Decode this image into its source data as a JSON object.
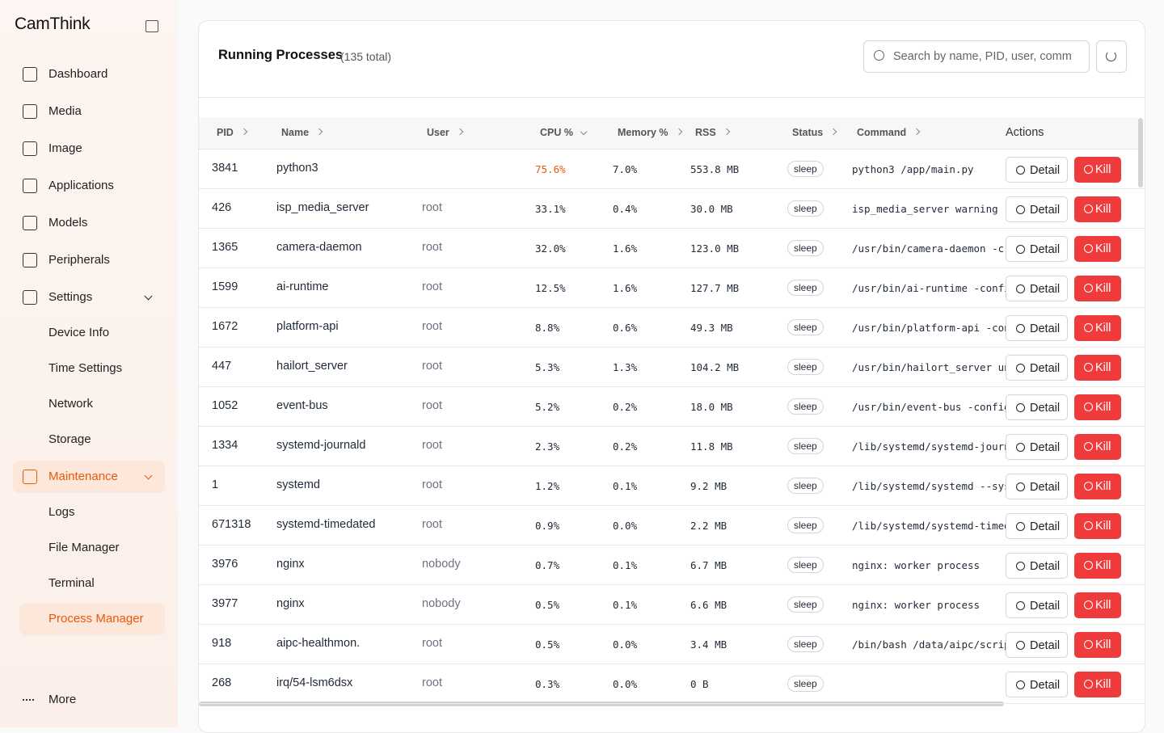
{
  "sidebar": {
    "logo": "CamThink",
    "nav": [
      "Dashboard",
      "Media",
      "Image",
      "Applications",
      "Models",
      "Peripherals"
    ],
    "settings": {
      "label": "Settings",
      "children": [
        "Device Info",
        "Time Settings",
        "Network",
        "Storage"
      ]
    },
    "maintenance": {
      "label": "Maintenance",
      "children": [
        "Logs",
        "File Manager",
        "Terminal",
        "Process Manager"
      ]
    },
    "more": "More"
  },
  "panel": {
    "title": "Running Processes",
    "count": "(135 total)",
    "search_placeholder": "Search by name, PID, user, comm",
    "columns": [
      "PID",
      "Name",
      "User",
      "CPU %",
      "Memory %",
      "RSS",
      "Status",
      "Command",
      "Actions"
    ],
    "actions": {
      "detail": "Detail",
      "kill": "Kill"
    },
    "rows": [
      [
        "3841",
        "python3",
        null,
        "75.6%",
        "7.0%",
        "553.8 MB",
        "sleep",
        "python3 /app/main.py"
      ],
      [
        "426",
        "isp_media_server",
        "root",
        "33.1%",
        "0.4%",
        "30.0 MB",
        "sleep",
        "isp_media_server warning"
      ],
      [
        "1365",
        "camera-daemon",
        "root",
        "32.0%",
        "1.6%",
        "123.0 MB",
        "sleep",
        "/usr/bin/camera-daemon -c"
      ],
      [
        "1599",
        "ai-runtime",
        "root",
        "12.5%",
        "1.6%",
        "127.7 MB",
        "sleep",
        "/usr/bin/ai-runtime -confi"
      ],
      [
        "1672",
        "platform-api",
        "root",
        "8.8%",
        "0.6%",
        "49.3 MB",
        "sleep",
        "/usr/bin/platform-api -con"
      ],
      [
        "447",
        "hailort_server",
        "root",
        "5.3%",
        "1.3%",
        "104.2 MB",
        "sleep",
        "/usr/bin/hailort_server un"
      ],
      [
        "1052",
        "event-bus",
        "root",
        "5.2%",
        "0.2%",
        "18.0 MB",
        "sleep",
        "/usr/bin/event-bus -config"
      ],
      [
        "1334",
        "systemd-journald",
        "root",
        "2.3%",
        "0.2%",
        "11.8 MB",
        "sleep",
        "/lib/systemd/systemd-journ"
      ],
      [
        "1",
        "systemd",
        "root",
        "1.2%",
        "0.1%",
        "9.2 MB",
        "sleep",
        "/lib/systemd/systemd --sys"
      ],
      [
        "671318",
        "systemd-timedated",
        "root",
        "0.9%",
        "0.0%",
        "2.2 MB",
        "sleep",
        "/lib/systemd/systemd-timed"
      ],
      [
        "3976",
        "nginx",
        "nobody",
        "0.7%",
        "0.1%",
        "6.7 MB",
        "sleep",
        "nginx: worker process"
      ],
      [
        "3977",
        "nginx",
        "nobody",
        "0.5%",
        "0.1%",
        "6.6 MB",
        "sleep",
        "nginx: worker process"
      ],
      [
        "918",
        "aipc-healthmon.",
        "root",
        "0.5%",
        "0.0%",
        "3.4 MB",
        "sleep",
        "/bin/bash /data/aipc/scrip"
      ],
      [
        "268",
        "irq/54-lsm6dsx",
        "root",
        "0.3%",
        "0.0%",
        "0 B",
        "sleep",
        null
      ]
    ]
  }
}
